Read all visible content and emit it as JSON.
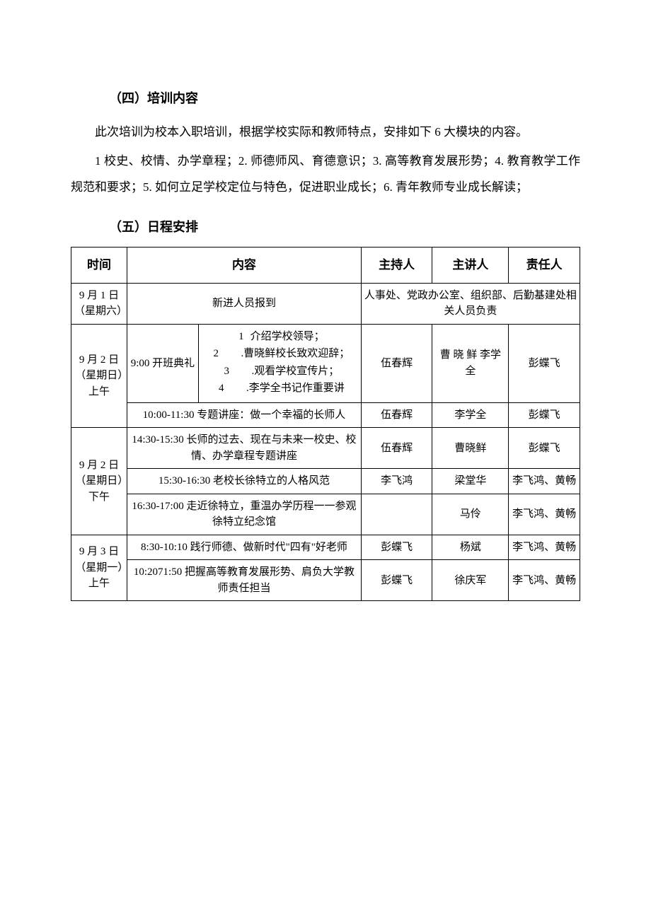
{
  "section4": {
    "heading": "（四）培训内容",
    "p1": "此次培训为校本入职培训，根据学校实际和教师特点，安排如下 6 大模块的内容。",
    "p2": "1 校史、校情、办学章程；2. 师德师风、育德意识；3. 高等教育发展形势；4. 教育教学工作规范和要求；5. 如何立足学校定位与特色，促进职业成长；6. 青年教师专业成长解读；"
  },
  "section5": {
    "heading": "（五）日程安排"
  },
  "table": {
    "headers": {
      "time": "时间",
      "content": "内容",
      "host": "主持人",
      "speaker": "主讲人",
      "resp": "责任人"
    },
    "row1": {
      "time": "9 月 1 日（星期六）",
      "content": "新进人员报到",
      "right_merged": "人事处、党政办公室、组织部、后勤基建处相关人员负责"
    },
    "row2": {
      "time": "9 月 2 日（星期日）上午",
      "contentA": "9:00 开班典礼",
      "sub1_num": "1",
      "sub1_text": " 介绍学校领导；",
      "sub2_num": "2",
      "sub2_dot": ".",
      "sub2_text": "曹晓鲜校长致欢迎辞；",
      "sub3_num": "3",
      "sub3_dot": ".",
      "sub3_text": "观看学校宣传片；",
      "sub4_num": "4",
      "sub4_dot": ".",
      "sub4_text": "李学全书记作重要讲",
      "host": "伍春辉",
      "speaker": "曹 晓 鲜 李学全",
      "resp": "彭蝶飞"
    },
    "row3": {
      "content": "10:00-11:30 专题讲座：做一个幸福的长师人",
      "host": "伍春辉",
      "speaker": "李学全",
      "resp": "彭蝶飞"
    },
    "row4": {
      "time": "9 月 2 日（星期日）下午",
      "content": "14:30-15:30 长师的过去、现在与未来一校史、校情、办学章程专题讲座",
      "host": "伍春辉",
      "speaker": "曹晓鲜",
      "resp": "彭蝶飞"
    },
    "row5": {
      "content": "15:30-16:30 老校长徐特立的人格风范",
      "host": "李飞鸿",
      "speaker": "梁堂华",
      "resp": "李飞鸿、黄畅"
    },
    "row6": {
      "content": "16:30-17:00 走近徐特立，重温办学历程一一参观徐特立纪念馆",
      "host": "",
      "speaker": "马伶",
      "resp": "李飞鸿、黄畅"
    },
    "row7": {
      "time": "9 月 3 日（星期一）上午",
      "content": "8:30-10:10 践行师德、做新时代\"四有\"好老师",
      "host": "彭蝶飞",
      "speaker": "杨斌",
      "resp": "李飞鸿、黄畅"
    },
    "row8": {
      "content": "10:2071:50 把握高等教育发展形势、肩负大学教师责任担当",
      "host": "彭蝶飞",
      "speaker": "徐庆军",
      "resp": "李飞鸿、黄畅"
    }
  }
}
